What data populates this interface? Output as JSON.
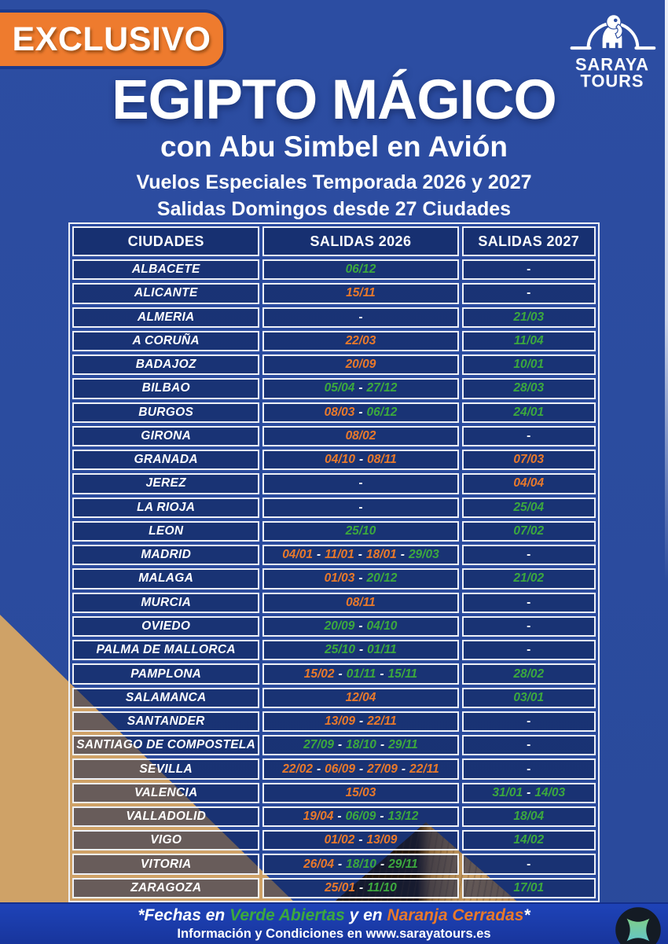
{
  "badge": {
    "label": "EXCLUSIVO"
  },
  "logo": {
    "line1": "SARAYA",
    "line2": "TOURS"
  },
  "header": {
    "title": "EGIPTO MÁGICO",
    "subtitle": "con Abu Simbel en Avión",
    "season_line": "Vuelos Especiales Temporada 2026 y 2027",
    "departures_line": "Salidas Domingos desde 27 Ciudades"
  },
  "table": {
    "columns": [
      "CIUDADES",
      "SALIDAS 2026",
      "SALIDAS 2027"
    ],
    "empty_marker": "-",
    "separator": "-",
    "rows": [
      {
        "city": "ALBACETE",
        "salidas_2026": [
          [
            "06/12",
            "open"
          ]
        ],
        "salidas_2027": []
      },
      {
        "city": "ALICANTE",
        "salidas_2026": [
          [
            "15/11",
            "closed"
          ]
        ],
        "salidas_2027": []
      },
      {
        "city": "ALMERIA",
        "salidas_2026": [],
        "salidas_2027": [
          [
            "21/03",
            "open"
          ]
        ]
      },
      {
        "city": "A CORUÑA",
        "salidas_2026": [
          [
            "22/03",
            "closed"
          ]
        ],
        "salidas_2027": [
          [
            "11/04",
            "open"
          ]
        ]
      },
      {
        "city": "BADAJOZ",
        "salidas_2026": [
          [
            "20/09",
            "closed"
          ]
        ],
        "salidas_2027": [
          [
            "10/01",
            "open"
          ]
        ]
      },
      {
        "city": "BILBAO",
        "salidas_2026": [
          [
            "05/04",
            "open"
          ],
          [
            "27/12",
            "open"
          ]
        ],
        "salidas_2027": [
          [
            "28/03",
            "open"
          ]
        ]
      },
      {
        "city": "BURGOS",
        "salidas_2026": [
          [
            "08/03",
            "closed"
          ],
          [
            "06/12",
            "open"
          ]
        ],
        "salidas_2027": [
          [
            "24/01",
            "open"
          ]
        ]
      },
      {
        "city": "GIRONA",
        "salidas_2026": [
          [
            "08/02",
            "closed"
          ]
        ],
        "salidas_2027": []
      },
      {
        "city": "GRANADA",
        "salidas_2026": [
          [
            "04/10",
            "closed"
          ],
          [
            "08/11",
            "closed"
          ]
        ],
        "salidas_2027": [
          [
            "07/03",
            "closed"
          ]
        ]
      },
      {
        "city": "JEREZ",
        "salidas_2026": [],
        "salidas_2027": [
          [
            "04/04",
            "closed"
          ]
        ]
      },
      {
        "city": "LA RIOJA",
        "salidas_2026": [],
        "salidas_2027": [
          [
            "25/04",
            "open"
          ]
        ]
      },
      {
        "city": "LEON",
        "salidas_2026": [
          [
            "25/10",
            "open"
          ]
        ],
        "salidas_2027": [
          [
            "07/02",
            "open"
          ]
        ]
      },
      {
        "city": "MADRID",
        "salidas_2026": [
          [
            "04/01",
            "closed"
          ],
          [
            "11/01",
            "closed"
          ],
          [
            "18/01",
            "closed"
          ],
          [
            "29/03",
            "open"
          ]
        ],
        "salidas_2027": []
      },
      {
        "city": "MALAGA",
        "salidas_2026": [
          [
            "01/03",
            "closed"
          ],
          [
            "20/12",
            "open"
          ]
        ],
        "salidas_2027": [
          [
            "21/02",
            "open"
          ]
        ]
      },
      {
        "city": "MURCIA",
        "salidas_2026": [
          [
            "08/11",
            "closed"
          ]
        ],
        "salidas_2027": []
      },
      {
        "city": "OVIEDO",
        "salidas_2026": [
          [
            "20/09",
            "open"
          ],
          [
            "04/10",
            "open"
          ]
        ],
        "salidas_2027": []
      },
      {
        "city": "PALMA DE MALLORCA",
        "salidas_2026": [
          [
            "25/10",
            "open"
          ],
          [
            "01/11",
            "open"
          ]
        ],
        "salidas_2027": []
      },
      {
        "city": "PAMPLONA",
        "salidas_2026": [
          [
            "15/02",
            "closed"
          ],
          [
            "01/11",
            "open"
          ],
          [
            "15/11",
            "open"
          ]
        ],
        "salidas_2027": [
          [
            "28/02",
            "open"
          ]
        ]
      },
      {
        "city": "SALAMANCA",
        "salidas_2026": [
          [
            "12/04",
            "closed"
          ]
        ],
        "salidas_2027": [
          [
            "03/01",
            "open"
          ]
        ]
      },
      {
        "city": "SANTANDER",
        "salidas_2026": [
          [
            "13/09",
            "closed"
          ],
          [
            "22/11",
            "closed"
          ]
        ],
        "salidas_2027": []
      },
      {
        "city": "SANTIAGO DE COMPOSTELA",
        "salidas_2026": [
          [
            "27/09",
            "open"
          ],
          [
            "18/10",
            "open"
          ],
          [
            "29/11",
            "open"
          ]
        ],
        "salidas_2027": []
      },
      {
        "city": "SEVILLA",
        "salidas_2026": [
          [
            "22/02",
            "closed"
          ],
          [
            "06/09",
            "closed"
          ],
          [
            "27/09",
            "closed"
          ],
          [
            "22/11",
            "closed"
          ]
        ],
        "salidas_2027": []
      },
      {
        "city": "VALENCIA",
        "salidas_2026": [
          [
            "15/03",
            "closed"
          ]
        ],
        "salidas_2027": [
          [
            "31/01",
            "open"
          ],
          [
            "14/03",
            "open"
          ]
        ]
      },
      {
        "city": "VALLADOLID",
        "salidas_2026": [
          [
            "19/04",
            "closed"
          ],
          [
            "06/09",
            "open"
          ],
          [
            "13/12",
            "open"
          ]
        ],
        "salidas_2027": [
          [
            "18/04",
            "open"
          ]
        ]
      },
      {
        "city": "VIGO",
        "salidas_2026": [
          [
            "01/02",
            "closed"
          ],
          [
            "13/09",
            "closed"
          ]
        ],
        "salidas_2027": [
          [
            "14/02",
            "open"
          ]
        ]
      },
      {
        "city": "VITORIA",
        "salidas_2026": [
          [
            "26/04",
            "closed"
          ],
          [
            "18/10",
            "open"
          ],
          [
            "29/11",
            "open"
          ]
        ],
        "salidas_2027": []
      },
      {
        "city": "ZARAGOZA",
        "salidas_2026": [
          [
            "25/01",
            "closed"
          ],
          [
            "11/10",
            "open"
          ]
        ],
        "salidas_2027": [
          [
            "17/01",
            "open"
          ]
        ]
      }
    ]
  },
  "legend": {
    "parts": [
      {
        "text": "*Fechas en ",
        "style": "white"
      },
      {
        "text": "Verde Abiertas",
        "style": "open"
      },
      {
        "text": " y en ",
        "style": "white"
      },
      {
        "text": "Naranja Cerradas",
        "style": "closed"
      },
      {
        "text": "*",
        "style": "white"
      }
    ]
  },
  "footer": {
    "info_prefix": "Información y Condiciones en ",
    "website": "www.sarayatours.es"
  },
  "colors": {
    "open_green": "#3CA83E",
    "closed_orange": "#E8792B",
    "accent_orange": "#EE7B2E",
    "page_blue": "#2B4C9F",
    "footer_blue": "#1E43B8"
  }
}
